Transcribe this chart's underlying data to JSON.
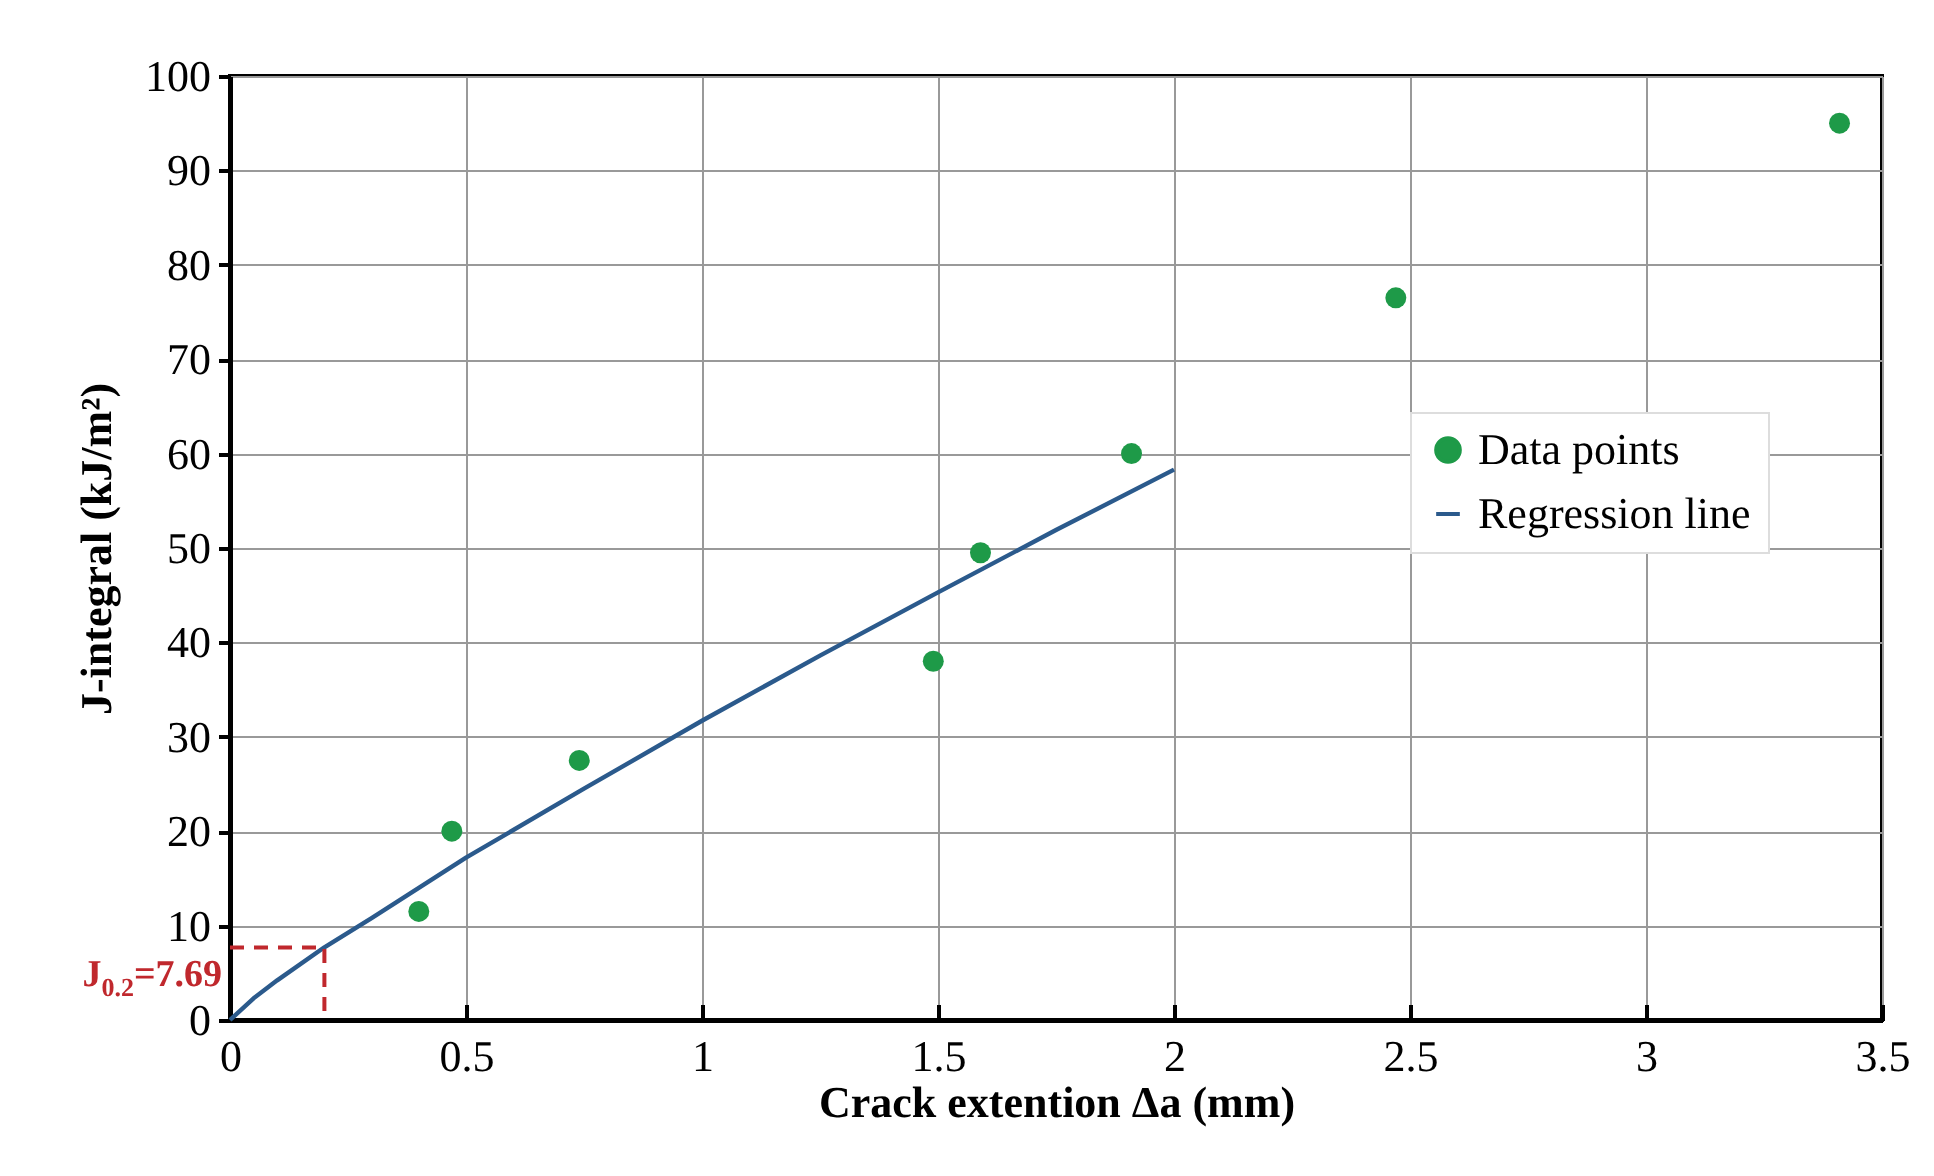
{
  "chart_data": {
    "type": "scatter",
    "xlabel": "Crack extention Δa (mm)",
    "ylabel": "J-integral (kJ/m²)",
    "xlim": [
      0,
      3.5
    ],
    "ylim": [
      0,
      100
    ],
    "xticks": [
      0,
      0.5,
      1,
      1.5,
      2,
      2.5,
      3,
      3.5
    ],
    "yticks": [
      0,
      10,
      20,
      30,
      40,
      50,
      60,
      70,
      80,
      90,
      100
    ],
    "grid": true,
    "legend": "right",
    "series": [
      {
        "name": "Data points",
        "marker": "circle",
        "color": "#1e9a48",
        "x": [
          0.4,
          0.47,
          0.74,
          1.49,
          1.59,
          1.91,
          2.47,
          3.41
        ],
        "values": [
          11.5,
          20,
          27.5,
          38,
          49.5,
          60,
          76.5,
          95
        ]
      },
      {
        "name": "Regression line",
        "type": "line",
        "line_style": "solid",
        "color": "#2b5a8c",
        "x": [
          0,
          0.05,
          0.1,
          0.2,
          0.3,
          0.5,
          0.75,
          1,
          1.25,
          1.5,
          1.75,
          2
        ],
        "values": [
          0,
          2.3,
          4.2,
          7.7,
          10.8,
          17.2,
          24.5,
          31.7,
          38.6,
          45.3,
          51.9,
          58.3
        ]
      },
      {
        "type": "line",
        "line_style": "dashed",
        "color": "#c0282d",
        "x": [
          0,
          0.2,
          0.2
        ],
        "values": [
          7.69,
          7.69,
          0
        ]
      }
    ],
    "annotations": [
      {
        "text": "J$_{0.2}$=7.69",
        "x": 0.2,
        "y": 7.69
      }
    ]
  }
}
